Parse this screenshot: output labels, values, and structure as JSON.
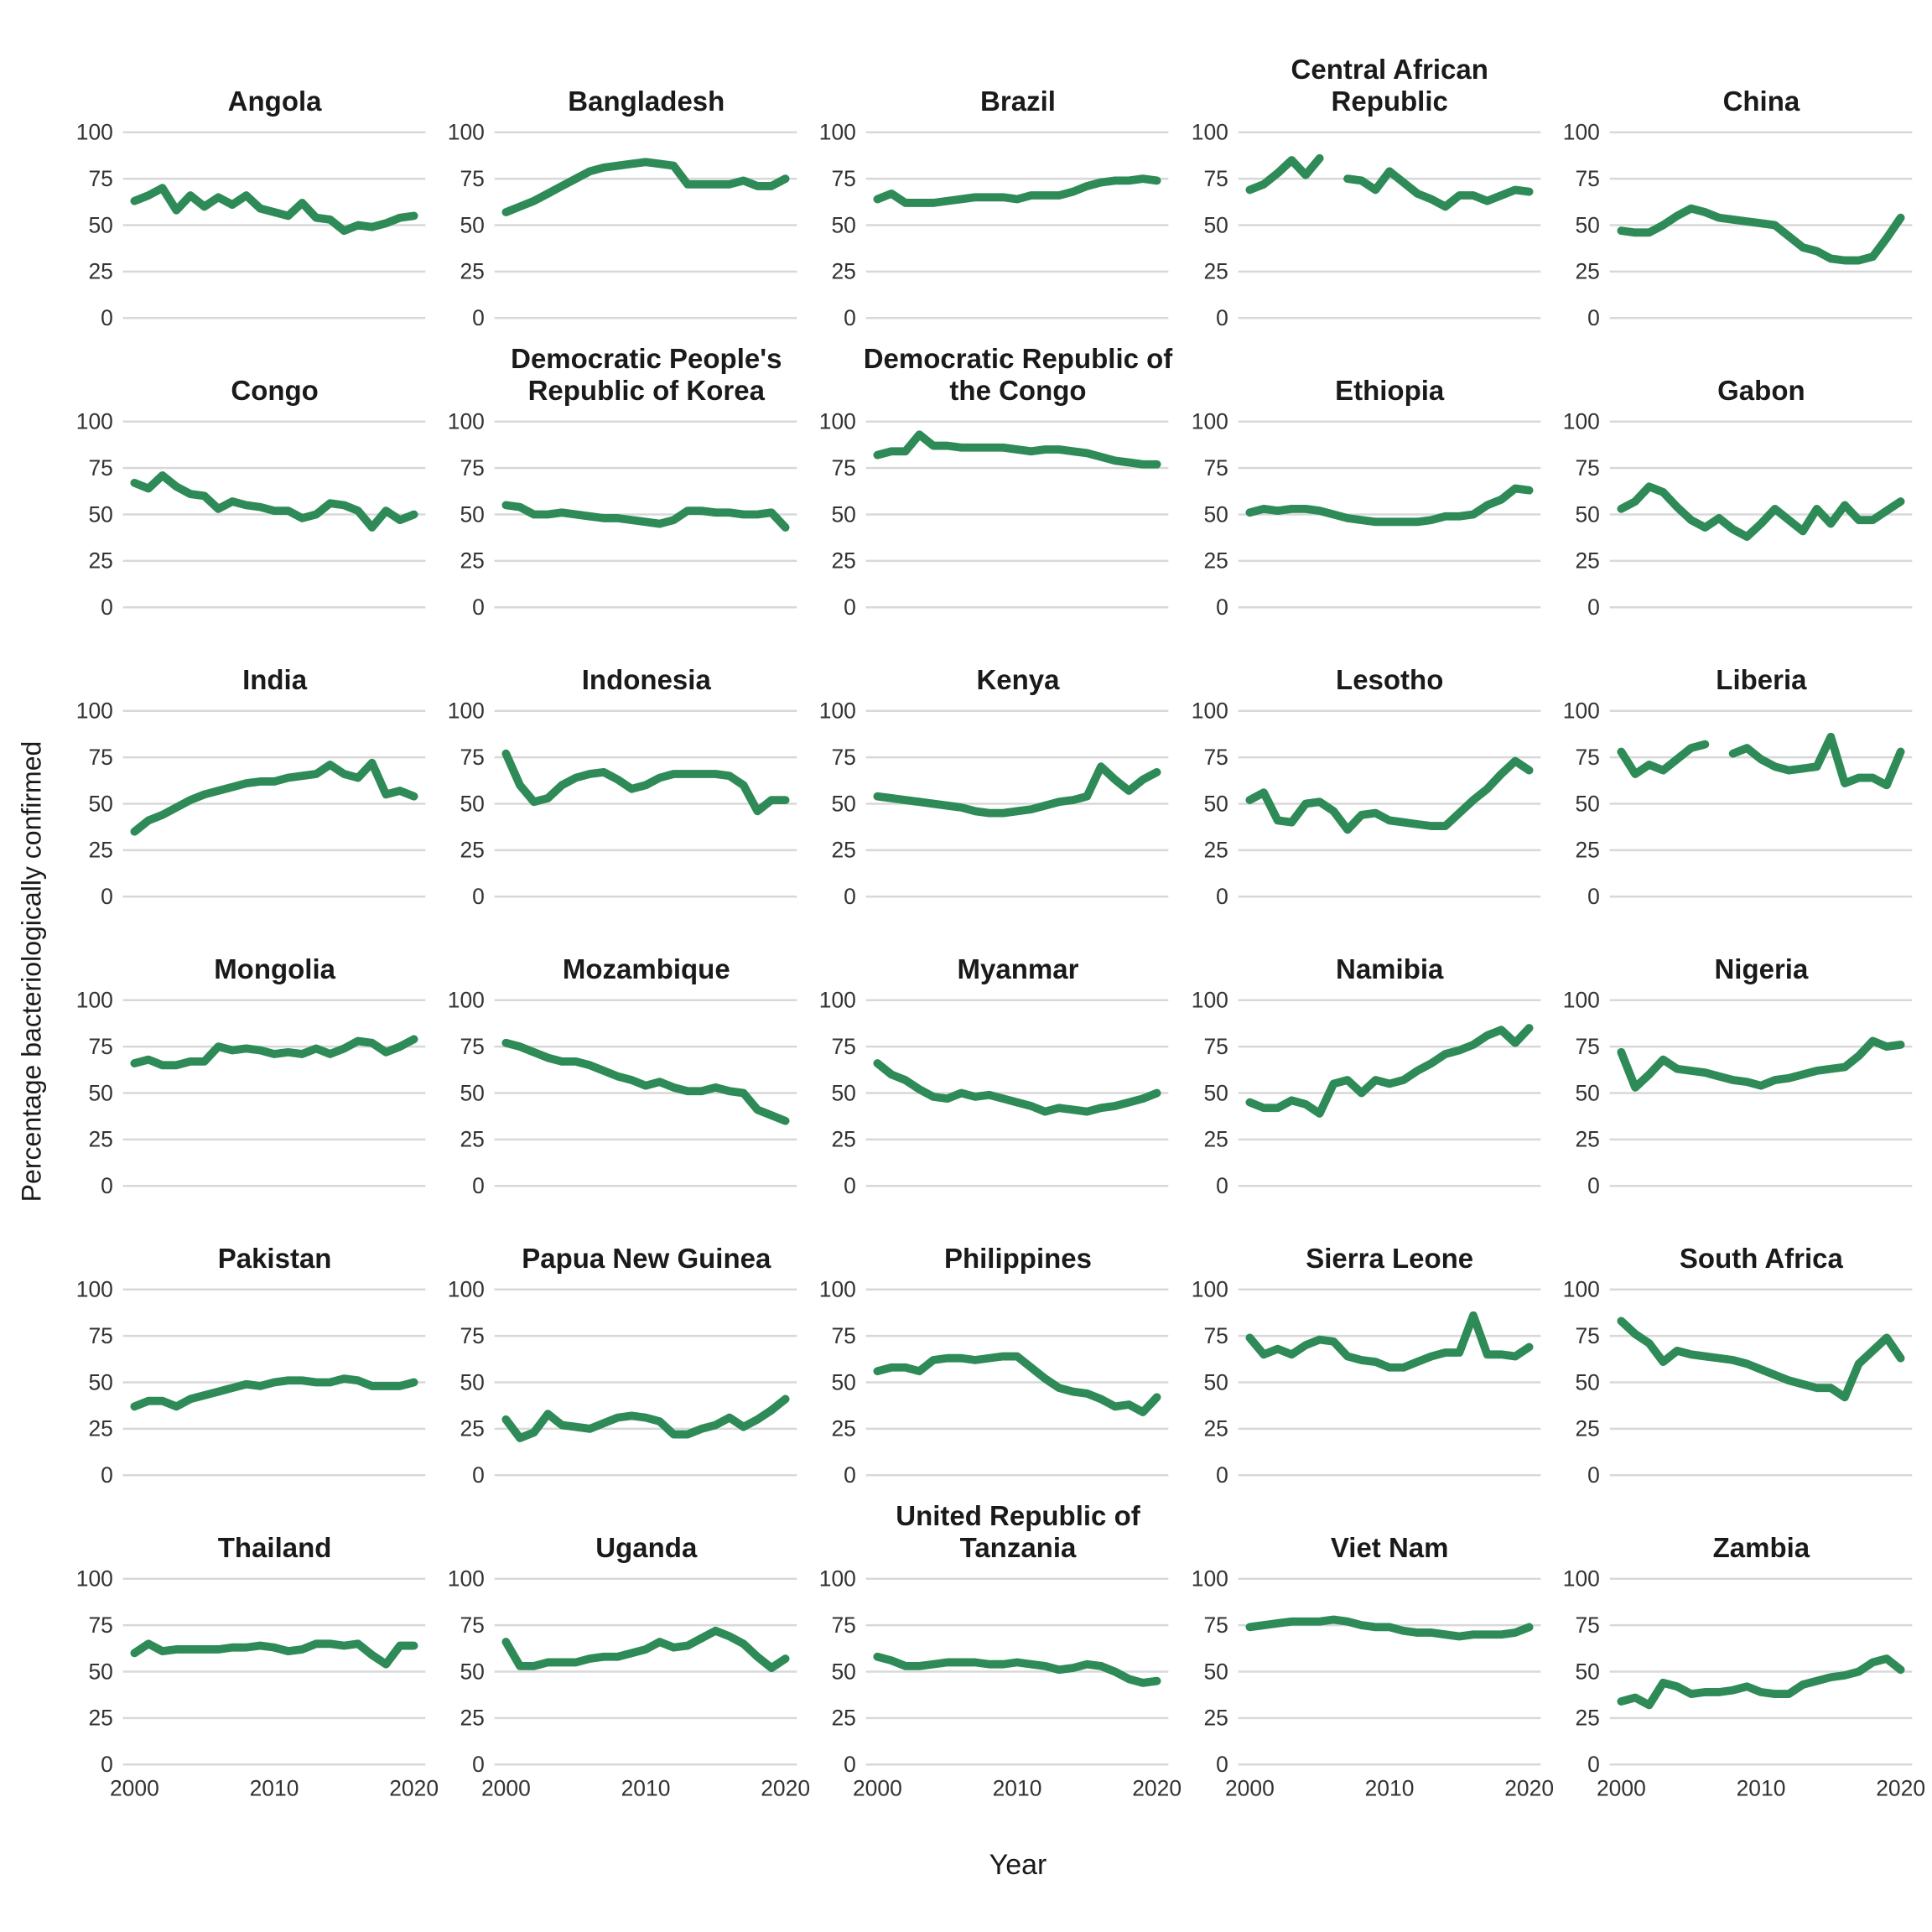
{
  "axes": {
    "y_label": "Percentage bacteriologically confirmed",
    "x_label": "Year",
    "y_ticks": [
      0,
      25,
      50,
      75,
      100
    ],
    "x_ticks": [
      2000,
      2010,
      2020
    ]
  },
  "style": {
    "line_color": "#2e8b57",
    "grid_color": "#d8d8d8",
    "title_color": "#1a1a1a",
    "tick_color": "#333333",
    "background": "#ffffff"
  },
  "chart_data": {
    "type": "line",
    "layout": "small-multiples 6 rows x 5 columns",
    "x_start": 2000,
    "x_end": 2020,
    "x_step": 1,
    "ylim": [
      0,
      100
    ],
    "grid": "horizontal gridlines at y ticks only",
    "legend": "none",
    "facets": [
      {
        "name": "Angola",
        "values": [
          63,
          66,
          70,
          58,
          66,
          60,
          65,
          61,
          66,
          59,
          57,
          55,
          62,
          54,
          53,
          47,
          50,
          49,
          51,
          54,
          55
        ]
      },
      {
        "name": "Bangladesh",
        "values": [
          57,
          60,
          63,
          67,
          71,
          75,
          79,
          81,
          82,
          83,
          84,
          83,
          82,
          72,
          72,
          72,
          72,
          74,
          71,
          71,
          75
        ]
      },
      {
        "name": "Brazil",
        "values": [
          64,
          67,
          62,
          62,
          62,
          63,
          64,
          65,
          65,
          65,
          64,
          66,
          66,
          66,
          68,
          71,
          73,
          74,
          74,
          75,
          74
        ]
      },
      {
        "name": "Central African Republic",
        "values": [
          69,
          72,
          78,
          85,
          77,
          86,
          null,
          75,
          74,
          69,
          79,
          73,
          67,
          64,
          60,
          66,
          66,
          63,
          66,
          69,
          68
        ]
      },
      {
        "name": "China",
        "values": [
          47,
          46,
          46,
          50,
          55,
          59,
          57,
          54,
          53,
          52,
          51,
          50,
          44,
          38,
          36,
          32,
          31,
          31,
          33,
          43,
          54
        ]
      },
      {
        "name": "Congo",
        "values": [
          67,
          64,
          71,
          65,
          61,
          60,
          53,
          57,
          55,
          54,
          52,
          52,
          48,
          50,
          56,
          55,
          52,
          43,
          52,
          47,
          50
        ]
      },
      {
        "name": "Democratic People's Republic of Korea",
        "values": [
          55,
          54,
          50,
          50,
          51,
          50,
          49,
          48,
          48,
          47,
          46,
          45,
          47,
          52,
          52,
          51,
          51,
          50,
          50,
          51,
          43
        ]
      },
      {
        "name": "Democratic Republic of the Congo",
        "values": [
          82,
          84,
          84,
          93,
          87,
          87,
          86,
          86,
          86,
          86,
          85,
          84,
          85,
          85,
          84,
          83,
          81,
          79,
          78,
          77,
          77
        ]
      },
      {
        "name": "Ethiopia",
        "values": [
          51,
          53,
          52,
          53,
          53,
          52,
          50,
          48,
          47,
          46,
          46,
          46,
          46,
          47,
          49,
          49,
          50,
          55,
          58,
          64,
          63
        ]
      },
      {
        "name": "Gabon",
        "values": [
          53,
          57,
          65,
          62,
          54,
          47,
          43,
          48,
          42,
          38,
          45,
          53,
          47,
          41,
          53,
          45,
          55,
          47,
          47,
          52,
          57
        ]
      },
      {
        "name": "India",
        "values": [
          35,
          41,
          44,
          48,
          52,
          55,
          57,
          59,
          61,
          62,
          62,
          64,
          65,
          66,
          71,
          66,
          64,
          72,
          55,
          57,
          54
        ]
      },
      {
        "name": "Indonesia",
        "values": [
          77,
          60,
          51,
          53,
          60,
          64,
          66,
          67,
          63,
          58,
          60,
          64,
          66,
          66,
          66,
          66,
          65,
          60,
          46,
          52,
          52
        ]
      },
      {
        "name": "Kenya",
        "values": [
          54,
          53,
          52,
          51,
          50,
          49,
          48,
          46,
          45,
          45,
          46,
          47,
          49,
          51,
          52,
          54,
          70,
          63,
          57,
          63,
          67
        ]
      },
      {
        "name": "Lesotho",
        "values": [
          52,
          56,
          41,
          40,
          50,
          51,
          46,
          36,
          44,
          45,
          41,
          40,
          39,
          38,
          38,
          45,
          52,
          58,
          66,
          73,
          68
        ]
      },
      {
        "name": "Liberia",
        "values": [
          78,
          66,
          71,
          68,
          74,
          80,
          82,
          null,
          77,
          80,
          74,
          70,
          68,
          69,
          70,
          86,
          61,
          64,
          64,
          60,
          78
        ]
      },
      {
        "name": "Mongolia",
        "values": [
          66,
          68,
          65,
          65,
          67,
          67,
          75,
          73,
          74,
          73,
          71,
          72,
          71,
          74,
          71,
          74,
          78,
          77,
          72,
          75,
          79
        ]
      },
      {
        "name": "Mozambique",
        "values": [
          77,
          75,
          72,
          69,
          67,
          67,
          65,
          62,
          59,
          57,
          54,
          56,
          53,
          51,
          51,
          53,
          51,
          50,
          41,
          38,
          35
        ]
      },
      {
        "name": "Myanmar",
        "values": [
          66,
          60,
          57,
          52,
          48,
          47,
          50,
          48,
          49,
          47,
          45,
          43,
          40,
          42,
          41,
          40,
          42,
          43,
          45,
          47,
          50
        ]
      },
      {
        "name": "Namibia",
        "values": [
          45,
          42,
          42,
          46,
          44,
          39,
          55,
          57,
          50,
          57,
          55,
          57,
          62,
          66,
          71,
          73,
          76,
          81,
          84,
          77,
          85
        ]
      },
      {
        "name": "Nigeria",
        "values": [
          72,
          53,
          60,
          68,
          63,
          62,
          61,
          59,
          57,
          56,
          54,
          57,
          58,
          60,
          62,
          63,
          64,
          70,
          78,
          75,
          76
        ]
      },
      {
        "name": "Pakistan",
        "values": [
          37,
          40,
          40,
          37,
          41,
          43,
          45,
          47,
          49,
          48,
          50,
          51,
          51,
          50,
          50,
          52,
          51,
          48,
          48,
          48,
          50
        ]
      },
      {
        "name": "Papua New Guinea",
        "values": [
          30,
          20,
          23,
          33,
          27,
          26,
          25,
          28,
          31,
          32,
          31,
          29,
          22,
          22,
          25,
          27,
          31,
          26,
          30,
          35,
          41
        ]
      },
      {
        "name": "Philippines",
        "values": [
          56,
          58,
          58,
          56,
          62,
          63,
          63,
          62,
          63,
          64,
          64,
          58,
          52,
          47,
          45,
          44,
          41,
          37,
          38,
          34,
          42
        ]
      },
      {
        "name": "Sierra Leone",
        "values": [
          74,
          65,
          68,
          65,
          70,
          73,
          72,
          64,
          62,
          61,
          58,
          58,
          61,
          64,
          66,
          66,
          86,
          65,
          65,
          64,
          69
        ]
      },
      {
        "name": "South Africa",
        "values": [
          83,
          76,
          71,
          61,
          67,
          65,
          64,
          63,
          62,
          60,
          57,
          54,
          51,
          49,
          47,
          47,
          42,
          60,
          67,
          74,
          63
        ]
      },
      {
        "name": "Thailand",
        "values": [
          60,
          65,
          61,
          62,
          62,
          62,
          62,
          63,
          63,
          64,
          63,
          61,
          62,
          65,
          65,
          64,
          65,
          59,
          54,
          64,
          64
        ]
      },
      {
        "name": "Uganda",
        "values": [
          66,
          53,
          53,
          55,
          55,
          55,
          57,
          58,
          58,
          60,
          62,
          66,
          63,
          64,
          68,
          72,
          69,
          65,
          58,
          52,
          57
        ]
      },
      {
        "name": "United Republic of Tanzania",
        "values": [
          58,
          56,
          53,
          53,
          54,
          55,
          55,
          55,
          54,
          54,
          55,
          54,
          53,
          51,
          52,
          54,
          53,
          50,
          46,
          44,
          45
        ]
      },
      {
        "name": "Viet Nam",
        "values": [
          74,
          75,
          76,
          77,
          77,
          77,
          78,
          77,
          75,
          74,
          74,
          72,
          71,
          71,
          70,
          69,
          70,
          70,
          70,
          71,
          74
        ]
      },
      {
        "name": "Zambia",
        "values": [
          34,
          36,
          32,
          44,
          42,
          38,
          39,
          39,
          40,
          42,
          39,
          38,
          38,
          43,
          45,
          47,
          48,
          50,
          55,
          57,
          51
        ]
      }
    ]
  }
}
